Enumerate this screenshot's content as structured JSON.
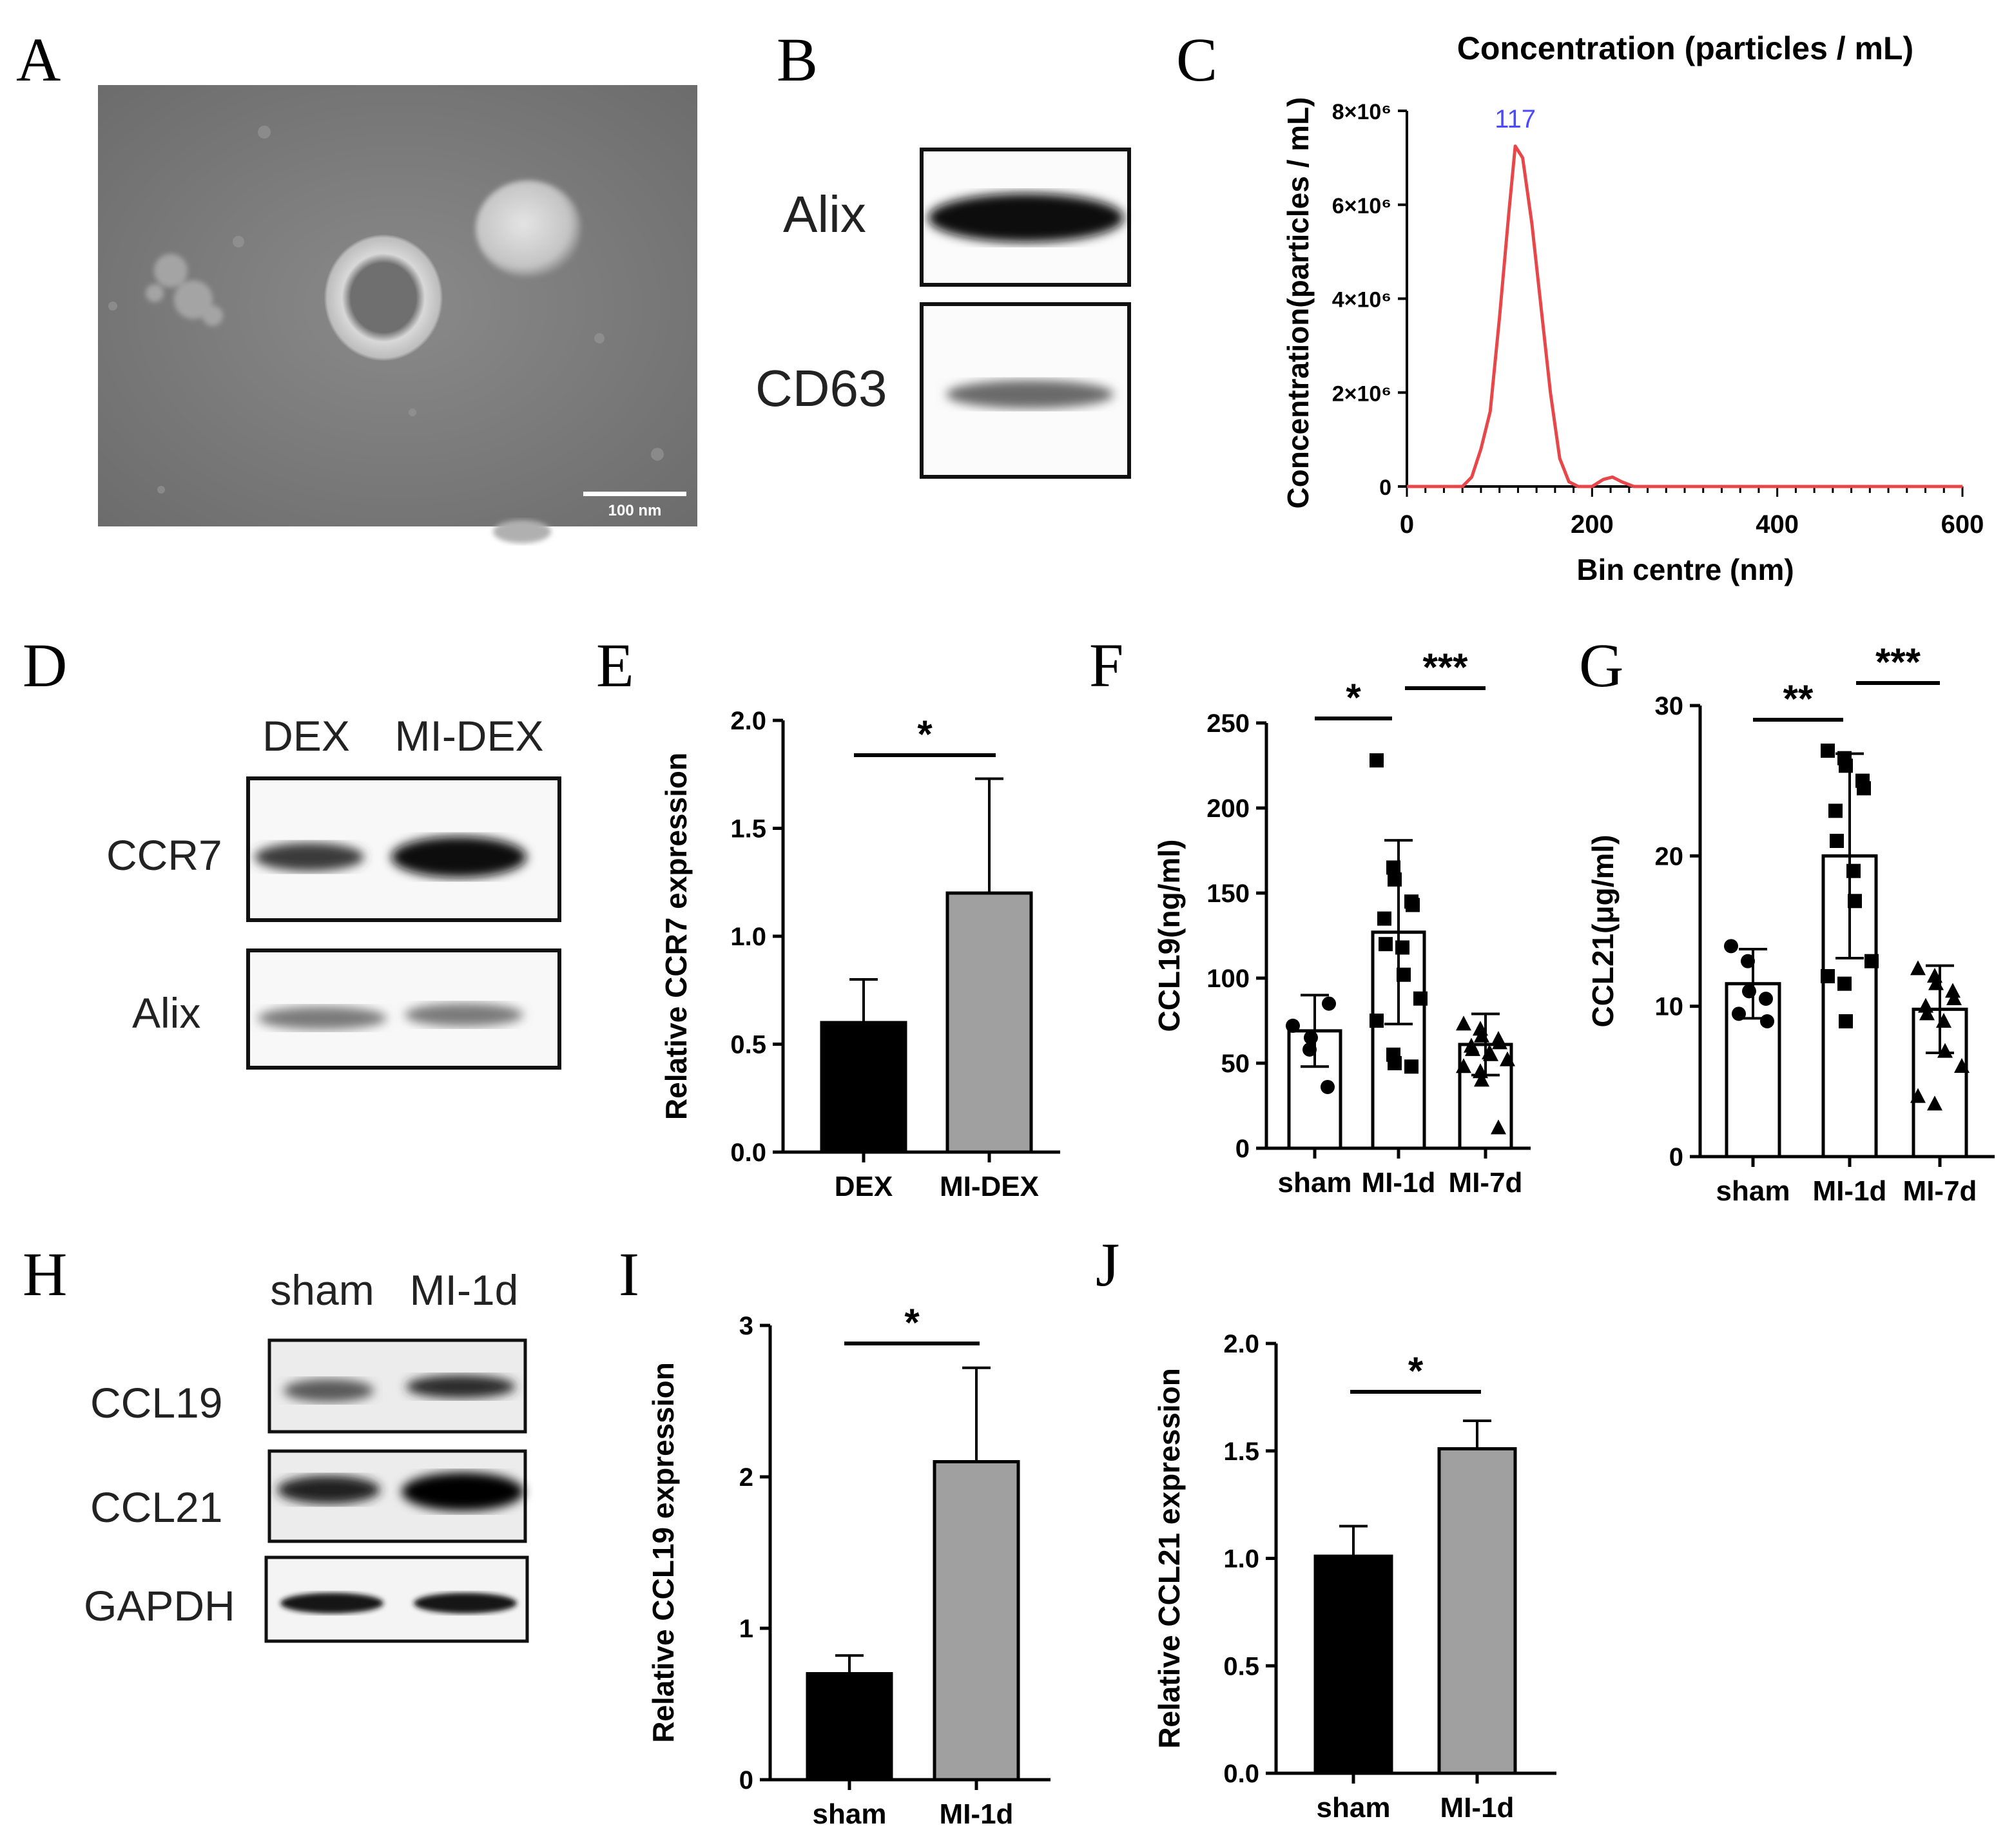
{
  "panels": {
    "A": {
      "letter": "A",
      "scale_bar": "100 nm"
    },
    "B": {
      "letter": "B",
      "bands": [
        "Alix",
        "CD63"
      ]
    },
    "C": {
      "letter": "C"
    },
    "D": {
      "letter": "D",
      "lanes": [
        "DEX",
        "MI-DEX"
      ],
      "bands": [
        "CCR7",
        "Alix"
      ]
    },
    "E": {
      "letter": "E"
    },
    "F": {
      "letter": "F"
    },
    "G": {
      "letter": "G"
    },
    "H": {
      "letter": "H",
      "lanes": [
        "sham",
        "MI-1d"
      ],
      "bands": [
        "CCL19",
        "CCL21",
        "GAPDH"
      ]
    },
    "I": {
      "letter": "I"
    },
    "J": {
      "letter": "J"
    }
  },
  "chart_data": [
    {
      "id": "C",
      "type": "line",
      "title": "Concentration (particles / mL)",
      "xlabel": "Bin centre (nm)",
      "ylabel": "Concentration(particles / mL)",
      "xlim": [
        0,
        600
      ],
      "ylim": [
        0,
        8000000
      ],
      "xticks": [
        "0",
        "200",
        "400",
        "600"
      ],
      "yticks": [
        "0",
        "2×10⁶",
        "4×10⁶",
        "6×10⁶",
        "8×10⁶"
      ],
      "peak_label": "117",
      "peak_label_color": "#4a4aff",
      "line_color": "#e8474a",
      "series": [
        {
          "x": [
            0,
            60,
            70,
            80,
            90,
            100,
            110,
            117,
            125,
            135,
            145,
            155,
            165,
            175,
            185,
            200,
            212,
            222,
            232,
            245,
            300,
            400,
            500,
            600
          ],
          "y": [
            0,
            0,
            200000,
            800000,
            1600000,
            3600000,
            5800000,
            7250000,
            7000000,
            5600000,
            3800000,
            2000000,
            600000,
            100000,
            0,
            0,
            150000,
            200000,
            100000,
            0,
            0,
            0,
            0,
            0
          ]
        }
      ]
    },
    {
      "id": "E",
      "type": "bar",
      "ylabel": "Relative CCR7 expression",
      "categories": [
        "DEX",
        "MI-DEX"
      ],
      "values": [
        0.6,
        1.2
      ],
      "errors": [
        0.2,
        0.53
      ],
      "colors": [
        "#000000",
        "#a0a0a0"
      ],
      "ylim": [
        0,
        2.0
      ],
      "yticks": [
        "0.0",
        "0.5",
        "1.0",
        "1.5",
        "2.0"
      ],
      "significance": [
        {
          "from": 0,
          "to": 1,
          "label": "*"
        }
      ]
    },
    {
      "id": "F",
      "type": "bar",
      "ylabel": "CCL19(ng/ml)",
      "categories": [
        "sham",
        "MI-1d",
        "MI-7d"
      ],
      "values": [
        69,
        127,
        61
      ],
      "errors": [
        21,
        54,
        18
      ],
      "ylim": [
        0,
        250
      ],
      "yticks": [
        "0",
        "50",
        "100",
        "150",
        "200",
        "250"
      ],
      "markers": [
        "circle",
        "square",
        "triangle"
      ],
      "points": [
        [
          72,
          58,
          65,
          36,
          85
        ],
        [
          228,
          165,
          158,
          145,
          143,
          135,
          120,
          118,
          102,
          88,
          75,
          55,
          50,
          48
        ],
        [
          73,
          70,
          66,
          64,
          62,
          60,
          58,
          56,
          55,
          52,
          48,
          45,
          40,
          12
        ]
      ],
      "significance": [
        {
          "from": 0,
          "to": 1,
          "label": "*"
        },
        {
          "from": 1,
          "to": 2,
          "label": "***"
        }
      ]
    },
    {
      "id": "G",
      "type": "bar",
      "ylabel": "CCL21(μg/ml)",
      "categories": [
        "sham",
        "MI-1d",
        "MI-7d"
      ],
      "values": [
        11.5,
        20,
        9.8
      ],
      "errors": [
        2.3,
        6.8,
        2.9
      ],
      "ylim": [
        0,
        30
      ],
      "yticks": [
        "0",
        "10",
        "20",
        "30"
      ],
      "markers": [
        "circle",
        "square",
        "triangle"
      ],
      "points": [
        [
          14,
          13,
          11,
          10.5,
          9,
          9.5
        ],
        [
          27,
          26.5,
          26,
          25,
          24.5,
          23,
          21,
          19,
          17,
          13,
          12,
          11.5,
          9
        ],
        [
          12.5,
          12,
          11.5,
          11,
          10.5,
          10,
          9.5,
          9,
          7,
          6,
          4,
          3.5
        ]
      ],
      "significance": [
        {
          "from": 0,
          "to": 1,
          "label": "**"
        },
        {
          "from": 1,
          "to": 2,
          "label": "***"
        }
      ]
    },
    {
      "id": "I",
      "type": "bar",
      "ylabel": "Relative CCL19 expression",
      "categories": [
        "sham",
        "MI-1d"
      ],
      "values": [
        0.7,
        2.1
      ],
      "errors": [
        0.12,
        0.62
      ],
      "colors": [
        "#000000",
        "#a0a0a0"
      ],
      "ylim": [
        0,
        3
      ],
      "yticks": [
        "0",
        "1",
        "2",
        "3"
      ],
      "significance": [
        {
          "from": 0,
          "to": 1,
          "label": "*"
        }
      ]
    },
    {
      "id": "J",
      "type": "bar",
      "ylabel": "Relative CCL21 expression",
      "categories": [
        "sham",
        "MI-1d"
      ],
      "values": [
        1.01,
        1.51
      ],
      "errors": [
        0.14,
        0.13
      ],
      "colors": [
        "#000000",
        "#a0a0a0"
      ],
      "ylim": [
        0,
        2.0
      ],
      "yticks": [
        "0.0",
        "0.5",
        "1.0",
        "1.5",
        "2.0"
      ],
      "significance": [
        {
          "from": 0,
          "to": 1,
          "label": "*"
        }
      ]
    }
  ]
}
